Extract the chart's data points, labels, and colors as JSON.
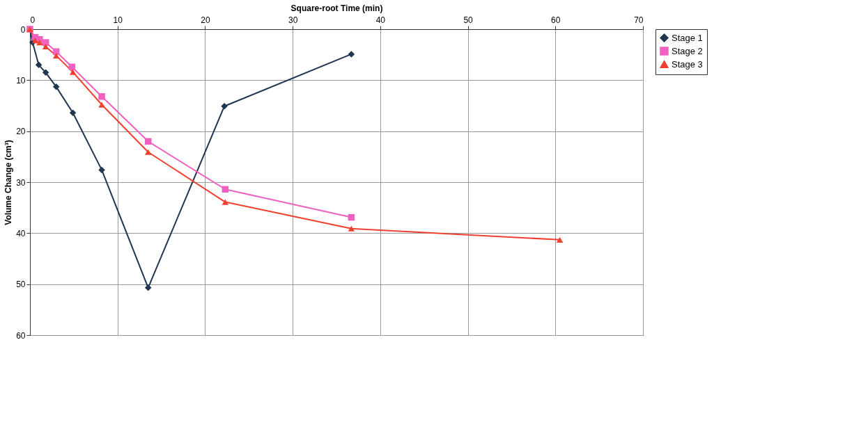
{
  "chart_data": {
    "type": "line",
    "xlabel": "Square-root Time (min)",
    "ylabel": "Volume Change (cm³)",
    "xlim": [
      0,
      70
    ],
    "xticks": [
      0,
      10,
      20,
      30,
      40,
      50,
      60,
      70
    ],
    "ylim": [
      60,
      0
    ],
    "yticks": [
      0,
      10,
      20,
      30,
      40,
      50,
      60
    ],
    "grid": true,
    "legend": "right",
    "line_style": "solid",
    "series": [
      {
        "name": "Stage 1",
        "color": "#1f3550",
        "marker": "diamond",
        "x": [
          0,
          0.3,
          1.0,
          1.8,
          3.0,
          4.9,
          8.2,
          13.5,
          22.2,
          36.7
        ],
        "values": [
          0,
          2.6,
          7.0,
          8.5,
          11.3,
          16.4,
          27.6,
          50.7,
          15.1,
          4.9
        ]
      },
      {
        "name": "Stage 2",
        "color": "#f060c0",
        "marker": "square",
        "x": [
          0,
          0.6,
          1.1,
          1.8,
          3.0,
          4.8,
          8.2,
          13.5,
          22.3,
          36.7
        ],
        "values": [
          0,
          1.6,
          2.0,
          2.6,
          4.4,
          7.4,
          13.2,
          22.0,
          31.4,
          36.9
        ]
      },
      {
        "name": "Stage 3",
        "color": "#f04030",
        "marker": "triangle",
        "x": [
          0,
          0.6,
          1.1,
          1.8,
          3.0,
          4.9,
          8.2,
          13.5,
          22.3,
          36.7,
          60.5
        ],
        "values": [
          0,
          2.2,
          2.6,
          3.4,
          5.2,
          8.4,
          14.8,
          24.1,
          33.9,
          39.1,
          41.3
        ]
      }
    ]
  }
}
